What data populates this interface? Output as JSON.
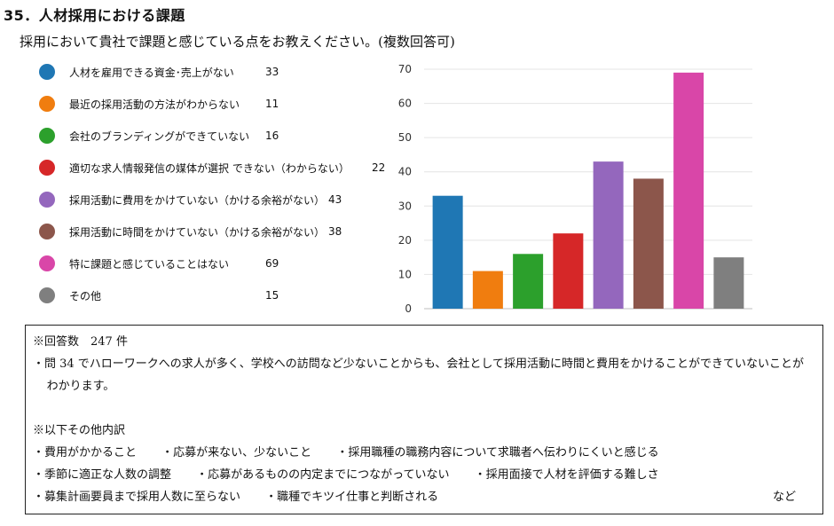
{
  "header": {
    "title": "35．人材採用における課題",
    "subtitle": "採用において貴社で課題と感じている点をお教えください。(複数回答可)"
  },
  "chart_data": {
    "type": "bar",
    "categories": [
      "人材を雇用できる資金･売上がない",
      "最近の採用活動の方法がわからない",
      "会社のブランディングができていない",
      "適切な求人情報発信の媒体が選択 できない（わからない）",
      "採用活動に費用をかけていない（かける余裕がない）",
      "採用活動に時間をかけていない（かける余裕がない）",
      "特に課題と感じていることはない",
      "その他"
    ],
    "values": [
      33,
      11,
      16,
      22,
      43,
      38,
      69,
      15
    ],
    "colors": [
      "#1f77b4",
      "#f07d0f",
      "#2ca02c",
      "#d62728",
      "#9467bd",
      "#8c564b",
      "#d946a8",
      "#7f7f7f"
    ],
    "ylim": [
      0,
      70
    ],
    "yticks": [
      "0",
      "10",
      "20",
      "30",
      "40",
      "50",
      "60",
      "70"
    ],
    "grid": true,
    "legend_position": "left"
  },
  "note": {
    "count_line": "※回答数　247 件",
    "comment": "・問 34 でハローワークへの求人が多く、学校への訪問など少ないことからも、会社として採用活動に時間と費用をかけることができていないことがわかります。",
    "other_heading": "※以下その他内訳",
    "others": [
      [
        "・費用がかかること",
        "・応募が来ない、少ないこと",
        "・採用職種の職務内容について求職者へ伝わりにくいと感じる"
      ],
      [
        "・季節に適正な人数の調整",
        "・応募があるものの内定までにつながっていない",
        "・採用面接で人材を評価する難しさ"
      ],
      [
        "・募集計画要員まで採用人数に至らない",
        "・職種でキツイ仕事と判断される"
      ]
    ],
    "suffix": "など"
  }
}
